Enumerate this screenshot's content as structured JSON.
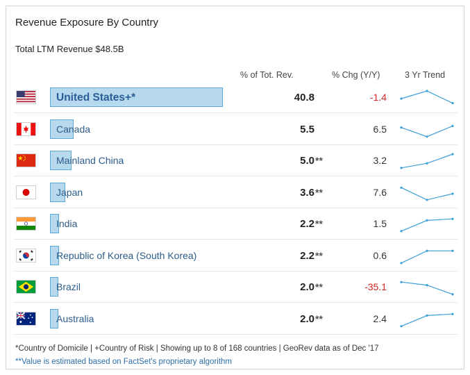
{
  "widget": {
    "title": "Revenue Exposure By Country",
    "subtitle": "Total LTM Revenue $48.5B",
    "columns": {
      "pct_total": "% of Tot. Rev.",
      "pct_chg": "% Chg (Y/Y)",
      "trend": "3 Yr Trend"
    },
    "colors": {
      "bar_fill": "#b6d9ee",
      "bar_border": "#5aa9d8",
      "negative": "#d42424",
      "trend_line": "#3a9fd6"
    },
    "rows": [
      {
        "flag": "us-flag-icon",
        "country": "United States+*",
        "share": 40.8,
        "pct": "40.8",
        "asterisks": "",
        "chg": "-1.4",
        "negative": true,
        "trend": [
          0.5,
          1.0,
          0.2
        ]
      },
      {
        "flag": "ca-flag-icon",
        "country": "Canada",
        "share": 5.5,
        "pct": "5.5",
        "asterisks": "",
        "chg": "6.5",
        "negative": false,
        "trend": [
          0.7,
          0.1,
          0.8
        ]
      },
      {
        "flag": "cn-flag-icon",
        "country": "Mainland China",
        "share": 5.0,
        "pct": "5.0",
        "asterisks": "**",
        "chg": "3.2",
        "negative": false,
        "trend": [
          0.1,
          0.4,
          1.0
        ]
      },
      {
        "flag": "jp-flag-icon",
        "country": "Japan",
        "share": 3.6,
        "pct": "3.6",
        "asterisks": "**",
        "chg": "7.6",
        "negative": false,
        "trend": [
          0.9,
          0.1,
          0.5
        ]
      },
      {
        "flag": "in-flag-icon",
        "country": "India",
        "share": 2.2,
        "pct": "2.2",
        "asterisks": "**",
        "chg": "1.5",
        "negative": false,
        "trend": [
          0.1,
          0.8,
          0.9
        ]
      },
      {
        "flag": "kr-flag-icon",
        "country": "Republic of Korea (South Korea)",
        "share": 2.2,
        "pct": "2.2",
        "asterisks": "**",
        "chg": "0.6",
        "negative": false,
        "trend": [
          0.1,
          0.9,
          0.9
        ]
      },
      {
        "flag": "br-flag-icon",
        "country": "Brazil",
        "share": 2.0,
        "pct": "2.0",
        "asterisks": "**",
        "chg": "-35.1",
        "negative": true,
        "trend": [
          0.9,
          0.7,
          0.1
        ]
      },
      {
        "flag": "au-flag-icon",
        "country": "Australia",
        "share": 2.0,
        "pct": "2.0",
        "asterisks": "**",
        "chg": "2.4",
        "negative": false,
        "trend": [
          0.1,
          0.8,
          0.9
        ]
      }
    ],
    "footnote": "*Country of Domicile | +Country of Risk | Showing up to 8 of 168 countries | GeoRev data as of Dec '17",
    "footnote_est": "**Value is estimated based on FactSet's proprietary algorithm"
  }
}
